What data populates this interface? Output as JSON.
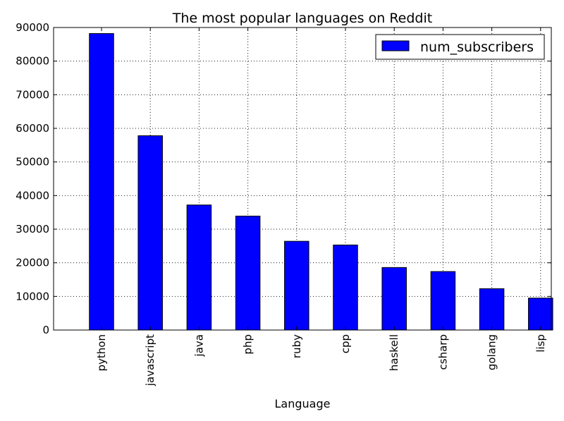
{
  "chart_data": {
    "type": "bar",
    "title": "The most popular languages on Reddit",
    "xlabel": "Language",
    "ylabel": "",
    "ylim": [
      0,
      90000
    ],
    "yticks": [
      0,
      10000,
      20000,
      30000,
      40000,
      50000,
      60000,
      70000,
      80000,
      90000
    ],
    "grid": true,
    "legend_position": "top-right",
    "categories": [
      "python",
      "javascript",
      "java",
      "php",
      "ruby",
      "cpp",
      "haskell",
      "csharp",
      "golang",
      "lisp"
    ],
    "series": [
      {
        "name": "num_subscribers",
        "color": "#0000ff",
        "values": [
          88200,
          57800,
          37200,
          33900,
          26400,
          25300,
          18600,
          17400,
          12300,
          9500
        ]
      }
    ]
  }
}
